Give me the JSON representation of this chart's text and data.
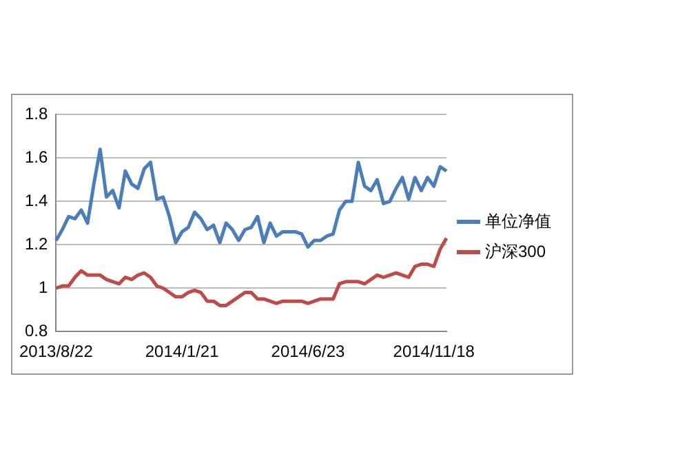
{
  "chart_data": {
    "type": "line",
    "categories": [
      "2013/8/22",
      null,
      null,
      null,
      null,
      null,
      null,
      null,
      null,
      null,
      null,
      null,
      null,
      null,
      null,
      null,
      null,
      null,
      null,
      null,
      "2014/1/21",
      null,
      null,
      null,
      null,
      null,
      null,
      null,
      null,
      null,
      null,
      null,
      null,
      null,
      null,
      null,
      null,
      null,
      null,
      null,
      "2014/6/23",
      null,
      null,
      null,
      null,
      null,
      null,
      null,
      null,
      null,
      null,
      null,
      null,
      null,
      null,
      null,
      null,
      null,
      null,
      null,
      "2014/11/18",
      null,
      null
    ],
    "series": [
      {
        "name": "单位净值",
        "color": "#4a7ebb",
        "values": [
          1.22,
          1.27,
          1.33,
          1.32,
          1.36,
          1.3,
          1.48,
          1.64,
          1.42,
          1.45,
          1.37,
          1.54,
          1.48,
          1.46,
          1.55,
          1.58,
          1.41,
          1.42,
          1.33,
          1.21,
          1.26,
          1.28,
          1.35,
          1.32,
          1.27,
          1.29,
          1.21,
          1.3,
          1.27,
          1.22,
          1.27,
          1.28,
          1.33,
          1.21,
          1.3,
          1.24,
          1.26,
          1.26,
          1.26,
          1.25,
          1.19,
          1.22,
          1.22,
          1.24,
          1.25,
          1.36,
          1.4,
          1.4,
          1.58,
          1.47,
          1.45,
          1.5,
          1.39,
          1.4,
          1.46,
          1.51,
          1.41,
          1.51,
          1.45,
          1.51,
          1.47,
          1.56,
          1.54
        ]
      },
      {
        "name": "沪深300",
        "color": "#be4b48",
        "values": [
          1.0,
          1.01,
          1.01,
          1.05,
          1.08,
          1.06,
          1.06,
          1.06,
          1.04,
          1.03,
          1.02,
          1.05,
          1.04,
          1.06,
          1.07,
          1.05,
          1.01,
          1.0,
          0.98,
          0.96,
          0.96,
          0.98,
          0.99,
          0.98,
          0.94,
          0.94,
          0.92,
          0.92,
          0.94,
          0.96,
          0.98,
          0.98,
          0.95,
          0.95,
          0.94,
          0.93,
          0.94,
          0.94,
          0.94,
          0.94,
          0.93,
          0.94,
          0.95,
          0.95,
          0.95,
          1.02,
          1.03,
          1.03,
          1.03,
          1.02,
          1.04,
          1.06,
          1.05,
          1.06,
          1.07,
          1.06,
          1.05,
          1.1,
          1.11,
          1.11,
          1.1,
          1.18,
          1.23
        ]
      }
    ],
    "ylim": [
      0.8,
      1.8
    ],
    "yticks": [
      0.8,
      1,
      1.2,
      1.4,
      1.6,
      1.8
    ],
    "grid": "y",
    "legend": "right",
    "marker": "none",
    "line_style": "solid"
  }
}
